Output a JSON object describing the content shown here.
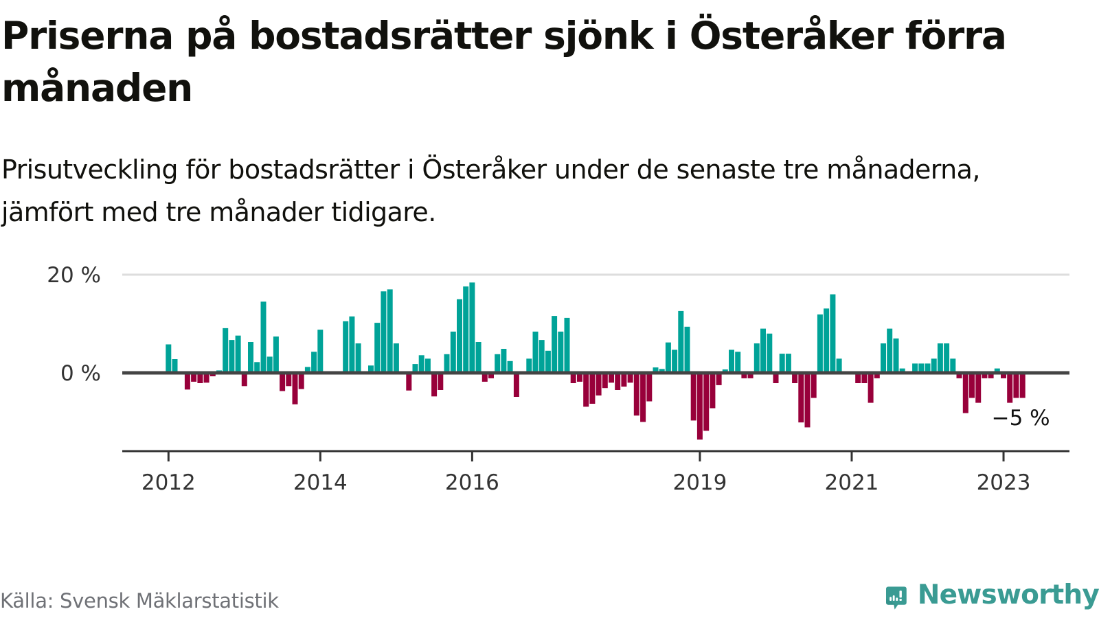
{
  "header": {
    "title": "Priserna på bostadsrätter sjönk i Österåker förra månaden",
    "subtitle": "Prisutveckling för bostadsrätter i Österåker under de senaste tre månaderna, jämfört med tre månader tidigare."
  },
  "footer": {
    "source": "Källa: Svensk Mäklarstatistik",
    "brand": "Newsworthy",
    "brand_icon": "newsworthy-logo-icon"
  },
  "colors": {
    "positive": "#00a398",
    "negative": "#98003a",
    "grid": "#dddddd",
    "axis": "#444444",
    "brand": "#3a9b93"
  },
  "chart_data": {
    "type": "bar",
    "title": "Priserna på bostadsrätter sjönk i Österåker förra månaden",
    "subtitle": "Prisutveckling för bostadsrätter i Österåker under de senaste tre månaderna, jämfört med tre månader tidigare.",
    "xlabel": "",
    "ylabel": "",
    "unit": "%",
    "start_month": "2012-01",
    "frequency": "monthly",
    "ylim": [
      -15,
      20
    ],
    "y_ticks": [
      {
        "value": 0,
        "label": "0 %"
      },
      {
        "value": 20,
        "label": "20 %"
      }
    ],
    "x_ticks": [
      {
        "index": 0,
        "label": "2012"
      },
      {
        "index": 24,
        "label": "2014"
      },
      {
        "index": 48,
        "label": "2016"
      },
      {
        "index": 84,
        "label": "2019"
      },
      {
        "index": 108,
        "label": "2021"
      },
      {
        "index": 132,
        "label": "2023"
      }
    ],
    "grid": true,
    "annotation": {
      "label": "−5 %",
      "index": 135
    },
    "values": [
      5.8,
      2.8,
      null,
      -3.4,
      -1.8,
      -2.1,
      -2.0,
      -0.7,
      0.5,
      9.1,
      6.7,
      7.6,
      -2.7,
      6.3,
      2.2,
      14.5,
      3.3,
      7.4,
      -3.7,
      -2.7,
      -6.4,
      -3.3,
      1.2,
      4.3,
      8.8,
      null,
      null,
      null,
      10.5,
      11.5,
      6.0,
      null,
      1.5,
      10.2,
      16.6,
      17.0,
      6.0,
      -0.3,
      -3.6,
      1.8,
      3.6,
      2.9,
      -4.8,
      -3.5,
      3.8,
      8.4,
      15.0,
      17.6,
      18.4,
      6.3,
      -1.8,
      -1.1,
      3.8,
      4.9,
      2.4,
      -4.9,
      null,
      2.9,
      8.4,
      6.7,
      4.5,
      11.6,
      8.4,
      11.2,
      -2.1,
      -1.8,
      -6.9,
      -6.3,
      -4.6,
      -3.1,
      -2.0,
      -3.5,
      -2.8,
      -2.0,
      -8.7,
      -10.0,
      -5.8,
      1.1,
      0.8,
      6.2,
      4.7,
      12.6,
      9.4,
      -9.7,
      -13.6,
      -11.8,
      -7.2,
      -2.5,
      0.7,
      4.7,
      4.3,
      -1.1,
      -1.1,
      6.0,
      9.0,
      8.0,
      -2.1,
      3.9,
      3.9,
      -2.1,
      -10.1,
      -11.1,
      -5.1,
      11.9,
      13.1,
      16.0,
      2.9,
      null,
      null,
      -2.1,
      -2.1,
      -6.1,
      -1.1,
      6.0,
      9.0,
      7.0,
      0.9,
      null,
      1.9,
      1.9,
      1.9,
      2.9,
      6.0,
      6.0,
      2.9,
      -1.1,
      -8.2,
      -5.1,
      -6.1,
      -1.1,
      -1.1,
      0.9,
      -1.1,
      -6.1,
      -5.1,
      -5.1
    ]
  }
}
